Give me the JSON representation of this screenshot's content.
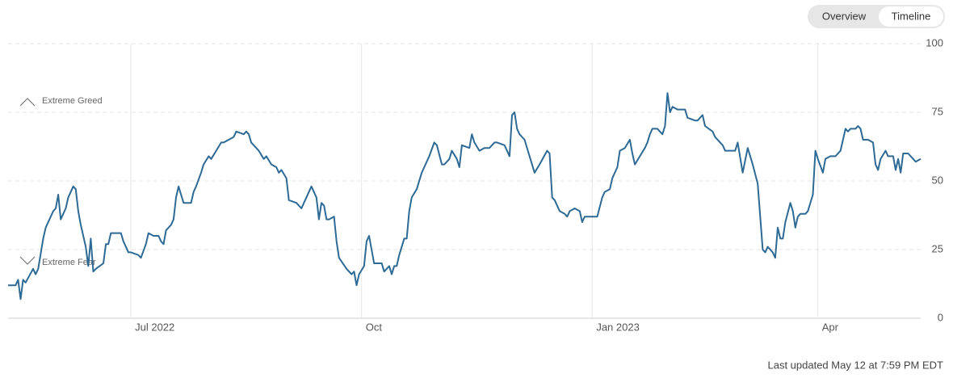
{
  "controls": [
    "Overview",
    "Timeline"
  ],
  "footer": "Last updated May 12 at 7:59 PM EDT",
  "chart_data": {
    "type": "line",
    "color": "#2d6a95",
    "annotations": [
      "Extreme Greed",
      "Extreme Fear"
    ],
    "x": [
      0,
      3,
      4,
      5,
      6,
      7,
      10,
      11,
      12,
      14,
      15,
      18,
      19,
      20,
      21,
      23,
      24,
      26,
      27,
      28,
      29,
      31,
      32,
      33,
      34,
      35,
      38,
      39,
      40,
      41,
      45,
      46,
      48,
      49,
      52,
      53,
      55,
      56,
      58,
      60,
      61,
      62,
      63,
      65,
      66,
      67,
      68,
      70,
      73,
      74,
      75,
      77,
      78,
      80,
      81,
      83,
      85,
      86,
      88,
      90,
      91,
      94,
      95,
      96,
      97,
      100,
      102,
      103,
      105,
      107,
      108,
      109,
      111,
      112,
      115,
      116,
      117,
      119,
      120,
      121,
      123,
      124,
      125,
      126,
      127,
      128,
      130,
      131,
      132,
      135,
      137,
      138,
      139,
      140,
      142,
      143,
      144,
      146,
      149,
      150,
      152,
      153,
      154,
      155,
      156,
      158,
      159,
      160,
      161,
      163,
      165,
      166,
      168,
      170,
      171,
      173,
      174,
      176,
      177,
      179,
      180,
      181,
      184,
      185,
      186,
      188,
      190,
      192,
      194,
      195,
      198,
      199,
      200,
      201,
      202,
      203,
      204,
      206,
      208,
      210,
      212,
      215,
      216,
      217,
      218,
      220,
      222,
      223,
      224,
      226,
      228,
      229,
      230,
      232,
      235,
      237,
      238,
      240,
      241,
      243,
      244,
      246,
      248,
      249,
      250,
      252,
      254,
      255,
      256,
      257,
      259,
      261,
      262,
      263,
      264,
      265,
      267,
      270,
      271,
      274,
      275,
      277,
      278,
      281,
      282,
      285,
      286,
      290,
      291,
      293,
      295,
      297,
      299,
      301,
      302,
      303,
      305,
      306,
      307,
      308,
      309,
      310,
      312,
      313,
      314,
      315,
      316,
      318,
      319,
      321,
      322,
      323,
      325,
      326,
      328,
      330,
      332,
      334,
      335,
      336,
      338,
      339,
      340,
      341,
      343,
      345,
      346,
      347,
      348,
      350,
      351,
      353,
      354,
      355,
      356,
      357,
      359,
      361,
      362,
      364
    ],
    "values": [
      12,
      12,
      14,
      7,
      14,
      13,
      18,
      16,
      18,
      29,
      33,
      39,
      40,
      45,
      36,
      40,
      44,
      48,
      47,
      39,
      34,
      26,
      19,
      29,
      17,
      18,
      20,
      27,
      27,
      31,
      31,
      28,
      24,
      24,
      23,
      22,
      27,
      31,
      30,
      30,
      28,
      27,
      32,
      34,
      36,
      44,
      48,
      42,
      42,
      46,
      48,
      53,
      56,
      59,
      58,
      61,
      64,
      64,
      65,
      66,
      68,
      67,
      68,
      67,
      64,
      61,
      58,
      59,
      56,
      55,
      53,
      54,
      51,
      43,
      42,
      41,
      40,
      44,
      46,
      48,
      44,
      36,
      42,
      41,
      36,
      36,
      37,
      28,
      22,
      18,
      16,
      17,
      12,
      16,
      19,
      28,
      30,
      20,
      20,
      17,
      19,
      16,
      19,
      19,
      23,
      29,
      29,
      39,
      44,
      47,
      53,
      55,
      59,
      64,
      63,
      56,
      56,
      58,
      61,
      58,
      55,
      63,
      62,
      67,
      64,
      61,
      62,
      62,
      64,
      64,
      63,
      61,
      59,
      74,
      75,
      69,
      67,
      65,
      59,
      53,
      56,
      61,
      60,
      44,
      43,
      39,
      38,
      37,
      39,
      40,
      39,
      35,
      37,
      37,
      37,
      44,
      46,
      47,
      51,
      55,
      61,
      62,
      65,
      60,
      56,
      59,
      62,
      64,
      67,
      69,
      69,
      67,
      70,
      82,
      75,
      77,
      76,
      76,
      73,
      72,
      72,
      74,
      70,
      68,
      66,
      63,
      61,
      61,
      64,
      53,
      62,
      56,
      49,
      25,
      24,
      26,
      24,
      22,
      33,
      29,
      29,
      35,
      42,
      39,
      33,
      37,
      38,
      38,
      39,
      45,
      61,
      58,
      53,
      58,
      59,
      59,
      61,
      69,
      68,
      69,
      69,
      70,
      69,
      65,
      65,
      64,
      56,
      54,
      58,
      61,
      59,
      59,
      54,
      58,
      53,
      60,
      60,
      58,
      57,
      58
    ],
    "xlim": [
      0,
      364
    ],
    "xticks": [
      {
        "value": 49,
        "label": "Jul 2022"
      },
      {
        "value": 141,
        "label": "Oct"
      },
      {
        "value": 233,
        "label": "Jan 2023"
      },
      {
        "value": 323,
        "label": "Apr"
      }
    ],
    "ylim": [
      0,
      100
    ],
    "yticks": [
      0,
      25,
      50,
      75,
      100
    ],
    "grid": true
  }
}
